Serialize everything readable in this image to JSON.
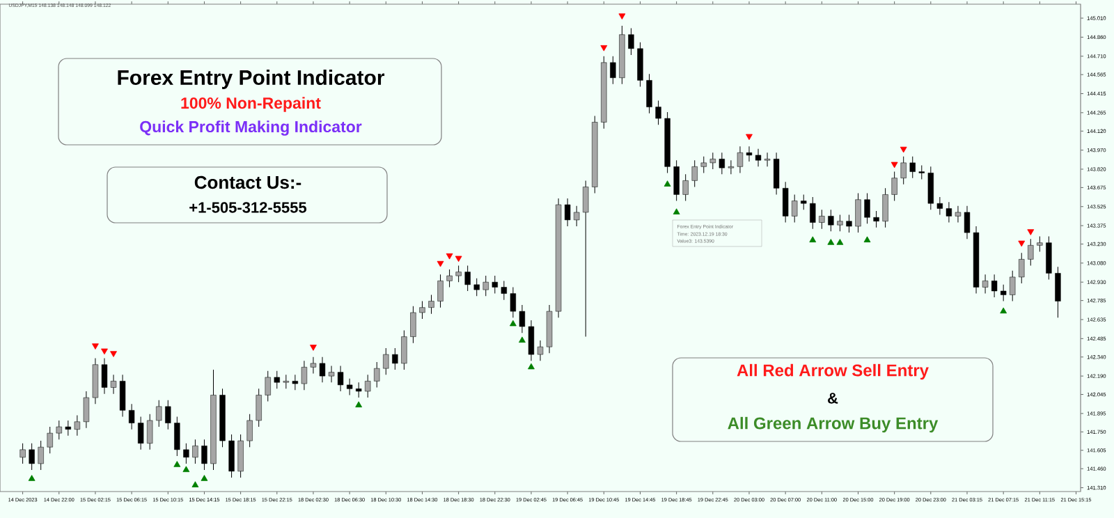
{
  "chart_data": {
    "type": "candlestick",
    "title": "Forex Entry Point Indicator",
    "subtitle": "100% Non-Repaint",
    "annotations": [
      "Quick Profit Making Indicator",
      "Contact Us:-",
      "+1-505-312-5555",
      "All Red Arrow Sell Entry",
      "&",
      "All Green Arrow Buy Entry",
      "Forex Entry Point Indicator",
      "Time: 2023.12.19 18:30",
      "Value3: 143.5390",
      "USDJPY,M15 148.138 148.148 148.099 148.122"
    ],
    "categories": [
      "14 Dec 2023",
      null,
      null,
      null,
      "14 Dec 22:00",
      null,
      null,
      null,
      "15 Dec 02:15",
      null,
      null,
      null,
      "15 Dec 06:15",
      null,
      null,
      null,
      "15 Dec 10:15",
      null,
      null,
      null,
      "15 Dec 14:15",
      null,
      null,
      null,
      "15 Dec 18:15",
      null,
      null,
      null,
      "15 Dec 22:15",
      null,
      null,
      null,
      "18 Dec 02:30",
      null,
      null,
      null,
      "18 Dec 06:30",
      null,
      null,
      null,
      "18 Dec 10:30",
      null,
      null,
      null,
      "18 Dec 14:30",
      null,
      null,
      null,
      "18 Dec 18:30",
      null,
      null,
      null,
      "18 Dec 22:30",
      null,
      null,
      null,
      "19 Dec 02:45",
      null,
      null,
      null,
      "19 Dec 06:45",
      null,
      null,
      null,
      "19 Dec 10:45",
      null,
      null,
      null,
      "19 Dec 14:45",
      null,
      null,
      null,
      "19 Dec 18:45",
      null,
      null,
      null,
      "19 Dec 22:45",
      null,
      null,
      null,
      "20 Dec 03:00",
      null,
      null,
      null,
      "20 Dec 07:00",
      null,
      null,
      null,
      "20 Dec 11:00",
      null,
      null,
      null,
      "20 Dec 15:00",
      null,
      null,
      null,
      "20 Dec 19:00",
      null,
      null,
      null,
      "20 Dec 23:00",
      null,
      null,
      null,
      "21 Dec 03:15",
      null,
      null,
      null,
      "21 Dec 07:15",
      null,
      null,
      null,
      "21 Dec 11:15",
      null,
      null,
      null,
      "21 Dec 15:15"
    ],
    "ohlc": [
      [
        141.55,
        141.66,
        141.5,
        141.61
      ],
      [
        141.61,
        141.66,
        141.45,
        141.5
      ],
      [
        141.5,
        141.68,
        141.45,
        141.63
      ],
      [
        141.63,
        141.79,
        141.58,
        141.74
      ],
      [
        141.74,
        141.84,
        141.69,
        141.79
      ],
      [
        141.79,
        141.84,
        141.72,
        141.77
      ],
      [
        141.77,
        141.88,
        141.72,
        141.83
      ],
      [
        141.83,
        142.07,
        141.78,
        142.02
      ],
      [
        142.02,
        142.33,
        141.97,
        142.28
      ],
      [
        142.28,
        142.33,
        142.05,
        142.1
      ],
      [
        142.1,
        142.2,
        142.05,
        142.15
      ],
      [
        142.15,
        142.2,
        141.87,
        141.92
      ],
      [
        141.92,
        141.97,
        141.77,
        141.82
      ],
      [
        141.82,
        141.87,
        141.61,
        141.66
      ],
      [
        141.66,
        141.89,
        141.61,
        141.84
      ],
      [
        141.84,
        142.0,
        141.79,
        141.95
      ],
      [
        141.95,
        142.0,
        141.77,
        141.82
      ],
      [
        141.82,
        141.87,
        141.56,
        141.61
      ],
      [
        141.61,
        141.66,
        141.5,
        141.55
      ],
      [
        141.55,
        141.69,
        141.5,
        141.64
      ],
      [
        141.64,
        141.69,
        141.45,
        141.5
      ],
      [
        141.5,
        142.24,
        141.45,
        142.04
      ],
      [
        142.04,
        142.09,
        141.63,
        141.68
      ],
      [
        141.68,
        141.73,
        141.39,
        141.44
      ],
      [
        141.44,
        141.73,
        141.39,
        141.68
      ],
      [
        141.68,
        141.89,
        141.63,
        141.84
      ],
      [
        141.84,
        142.09,
        141.79,
        142.04
      ],
      [
        142.04,
        142.23,
        141.99,
        142.18
      ],
      [
        142.18,
        142.23,
        142.09,
        142.14
      ],
      [
        142.14,
        142.2,
        142.09,
        142.15
      ],
      [
        142.15,
        142.2,
        142.08,
        142.13
      ],
      [
        142.13,
        142.31,
        142.08,
        142.26
      ],
      [
        142.26,
        142.34,
        142.21,
        142.29
      ],
      [
        142.29,
        142.34,
        142.14,
        142.19
      ],
      [
        142.19,
        142.27,
        142.14,
        142.22
      ],
      [
        142.22,
        142.27,
        142.07,
        142.12
      ],
      [
        142.12,
        142.17,
        142.04,
        142.09
      ],
      [
        142.09,
        142.14,
        142.02,
        142.07
      ],
      [
        142.07,
        142.2,
        142.02,
        142.15
      ],
      [
        142.15,
        142.3,
        142.1,
        142.25
      ],
      [
        142.25,
        142.41,
        142.2,
        142.36
      ],
      [
        142.36,
        142.41,
        142.24,
        142.29
      ],
      [
        142.29,
        142.55,
        142.24,
        142.5
      ],
      [
        142.5,
        142.74,
        142.45,
        142.69
      ],
      [
        142.69,
        142.78,
        142.64,
        142.73
      ],
      [
        142.73,
        142.83,
        142.68,
        142.78
      ],
      [
        142.78,
        142.99,
        142.73,
        142.94
      ],
      [
        142.94,
        143.03,
        142.89,
        142.98
      ],
      [
        142.98,
        143.06,
        142.93,
        143.01
      ],
      [
        143.01,
        143.06,
        142.86,
        142.91
      ],
      [
        142.91,
        142.96,
        142.82,
        142.87
      ],
      [
        142.87,
        142.98,
        142.82,
        142.93
      ],
      [
        142.93,
        142.98,
        142.84,
        142.89
      ],
      [
        142.89,
        142.94,
        142.79,
        142.84
      ],
      [
        142.84,
        142.89,
        142.65,
        142.7
      ],
      [
        142.7,
        142.75,
        142.53,
        142.58
      ],
      [
        142.58,
        142.63,
        142.31,
        142.36
      ],
      [
        142.36,
        142.47,
        142.31,
        142.42
      ],
      [
        142.42,
        142.75,
        142.37,
        142.7
      ],
      [
        142.7,
        143.59,
        142.65,
        143.54
      ],
      [
        143.54,
        143.59,
        143.37,
        143.42
      ],
      [
        143.42,
        143.53,
        143.37,
        143.48
      ],
      [
        143.48,
        143.73,
        142.5,
        143.68
      ],
      [
        143.68,
        144.24,
        143.63,
        144.19
      ],
      [
        144.19,
        144.71,
        144.14,
        144.66
      ],
      [
        144.66,
        144.71,
        144.49,
        144.54
      ],
      [
        144.54,
        144.95,
        144.49,
        144.88
      ],
      [
        144.88,
        144.93,
        144.72,
        144.77
      ],
      [
        144.77,
        144.82,
        144.47,
        144.52
      ],
      [
        144.52,
        144.57,
        144.26,
        144.31
      ],
      [
        144.31,
        144.36,
        144.17,
        144.22
      ],
      [
        144.22,
        144.27,
        143.79,
        143.84
      ],
      [
        143.84,
        143.89,
        143.57,
        143.62
      ],
      [
        143.62,
        143.78,
        143.57,
        143.73
      ],
      [
        143.73,
        143.89,
        143.68,
        143.84
      ],
      [
        143.84,
        143.92,
        143.79,
        143.87
      ],
      [
        143.87,
        143.95,
        143.82,
        143.9
      ],
      [
        143.9,
        143.95,
        143.78,
        143.83
      ],
      [
        143.83,
        143.89,
        143.78,
        143.84
      ],
      [
        143.84,
        144.0,
        143.79,
        143.95
      ],
      [
        143.95,
        144.0,
        143.88,
        143.93
      ],
      [
        143.93,
        143.98,
        143.84,
        143.89
      ],
      [
        143.89,
        143.95,
        143.84,
        143.9
      ],
      [
        143.9,
        143.95,
        143.62,
        143.67
      ],
      [
        143.67,
        143.72,
        143.4,
        143.45
      ],
      [
        143.45,
        143.62,
        143.4,
        143.57
      ],
      [
        143.57,
        143.62,
        143.5,
        143.55
      ],
      [
        143.55,
        143.6,
        143.35,
        143.4
      ],
      [
        143.4,
        143.5,
        143.35,
        143.45
      ],
      [
        143.45,
        143.5,
        143.33,
        143.38
      ],
      [
        143.38,
        143.46,
        143.33,
        143.41
      ],
      [
        143.41,
        143.46,
        143.32,
        143.37
      ],
      [
        143.37,
        143.63,
        143.32,
        143.58
      ],
      [
        143.58,
        143.63,
        143.39,
        143.44
      ],
      [
        143.44,
        143.49,
        143.36,
        143.41
      ],
      [
        143.41,
        143.67,
        143.36,
        143.62
      ],
      [
        143.62,
        143.8,
        143.57,
        143.75
      ],
      [
        143.75,
        143.92,
        143.7,
        143.87
      ],
      [
        143.87,
        143.92,
        143.75,
        143.8
      ],
      [
        143.8,
        143.85,
        143.74,
        143.79
      ],
      [
        143.79,
        143.84,
        143.5,
        143.55
      ],
      [
        143.55,
        143.6,
        143.46,
        143.51
      ],
      [
        143.51,
        143.56,
        143.4,
        143.45
      ],
      [
        143.45,
        143.53,
        143.4,
        143.48
      ],
      [
        143.48,
        143.53,
        143.27,
        143.32
      ],
      [
        143.32,
        143.37,
        142.84,
        142.89
      ],
      [
        142.89,
        142.99,
        142.84,
        142.94
      ],
      [
        142.94,
        142.99,
        142.81,
        142.86
      ],
      [
        142.86,
        142.91,
        142.78,
        142.83
      ],
      [
        142.83,
        143.02,
        142.78,
        142.97
      ],
      [
        142.97,
        143.16,
        142.92,
        143.11
      ],
      [
        143.11,
        143.27,
        143.06,
        143.22
      ],
      [
        143.22,
        143.29,
        143.17,
        143.24
      ],
      [
        143.24,
        143.29,
        142.95,
        143.0
      ],
      [
        143.0,
        143.05,
        142.65,
        142.78
      ],
      null,
      null
    ],
    "series": [
      {
        "type": "scatter",
        "marker": "triangle",
        "color": "#ff0000",
        "values": [
          null,
          null,
          null,
          null,
          null,
          null,
          null,
          null,
          142.43,
          142.39,
          142.37,
          null,
          null,
          null,
          null,
          null,
          null,
          null,
          null,
          null,
          null,
          null,
          null,
          null,
          null,
          null,
          null,
          null,
          null,
          null,
          null,
          null,
          142.42,
          null,
          null,
          null,
          null,
          null,
          null,
          null,
          null,
          null,
          null,
          null,
          null,
          null,
          143.08,
          143.14,
          143.12,
          null,
          null,
          null,
          null,
          null,
          null,
          null,
          null,
          null,
          null,
          null,
          null,
          null,
          null,
          null,
          144.78,
          null,
          145.03,
          null,
          null,
          null,
          null,
          null,
          null,
          null,
          null,
          null,
          null,
          null,
          null,
          null,
          144.08,
          null,
          null,
          null,
          null,
          null,
          null,
          null,
          null,
          null,
          null,
          null,
          null,
          null,
          null,
          null,
          143.86,
          143.98,
          null,
          null,
          null,
          null,
          null,
          null,
          null,
          null,
          null,
          null,
          null,
          null,
          143.24,
          143.33,
          null,
          null,
          null,
          null,
          null
        ]
      },
      {
        "type": "scatter",
        "marker": "triangle",
        "color": "#008000",
        "values": [
          null,
          141.38,
          null,
          null,
          null,
          null,
          null,
          null,
          null,
          null,
          null,
          null,
          null,
          null,
          null,
          null,
          null,
          141.49,
          141.45,
          141.33,
          141.38,
          null,
          null,
          null,
          null,
          null,
          null,
          null,
          null,
          null,
          null,
          null,
          null,
          null,
          null,
          null,
          null,
          141.96,
          null,
          null,
          null,
          null,
          null,
          null,
          null,
          null,
          null,
          null,
          null,
          null,
          null,
          null,
          null,
          null,
          142.6,
          142.47,
          142.26,
          null,
          null,
          null,
          null,
          null,
          null,
          null,
          null,
          null,
          null,
          null,
          null,
          null,
          null,
          143.7,
          143.48,
          null,
          null,
          null,
          null,
          null,
          null,
          null,
          null,
          null,
          null,
          null,
          null,
          null,
          null,
          143.26,
          null,
          143.24,
          143.24,
          null,
          null,
          143.26,
          null,
          null,
          null,
          null,
          null,
          null,
          null,
          null,
          null,
          null,
          null,
          null,
          null,
          null,
          142.7,
          null,
          null,
          null,
          null,
          null,
          null,
          null,
          null
        ]
      }
    ],
    "ylim": [
      141.28,
      145.12
    ],
    "yticks": [
      {
        "value": 145.01,
        "label": "145.010"
      },
      {
        "value": 144.86,
        "label": "144.860"
      },
      {
        "value": 144.71,
        "label": "144.710"
      },
      {
        "value": 144.565,
        "label": "144.565"
      },
      {
        "value": 144.415,
        "label": "144.415"
      },
      {
        "value": 144.265,
        "label": "144.265"
      },
      {
        "value": 144.12,
        "label": "144.120"
      },
      {
        "value": 143.97,
        "label": "143.970"
      },
      {
        "value": 143.82,
        "label": "143.820"
      },
      {
        "value": 143.675,
        "label": "143.675"
      },
      {
        "value": 143.525,
        "label": "143.525"
      },
      {
        "value": 143.375,
        "label": "143.375"
      },
      {
        "value": 143.23,
        "label": "143.230"
      },
      {
        "value": 143.08,
        "label": "143.080"
      },
      {
        "value": 142.93,
        "label": "142.930"
      },
      {
        "value": 142.785,
        "label": "142.785"
      },
      {
        "value": 142.635,
        "label": "142.635"
      },
      {
        "value": 142.485,
        "label": "142.485"
      },
      {
        "value": 142.34,
        "label": "142.340"
      },
      {
        "value": 142.19,
        "label": "142.190"
      },
      {
        "value": 142.045,
        "label": "142.045"
      },
      {
        "value": 141.895,
        "label": "141.895"
      },
      {
        "value": 141.75,
        "label": "141.750"
      },
      {
        "value": 141.605,
        "label": "141.605"
      },
      {
        "value": 141.46,
        "label": "141.460"
      },
      {
        "value": 141.31,
        "label": "141.310"
      }
    ]
  }
}
